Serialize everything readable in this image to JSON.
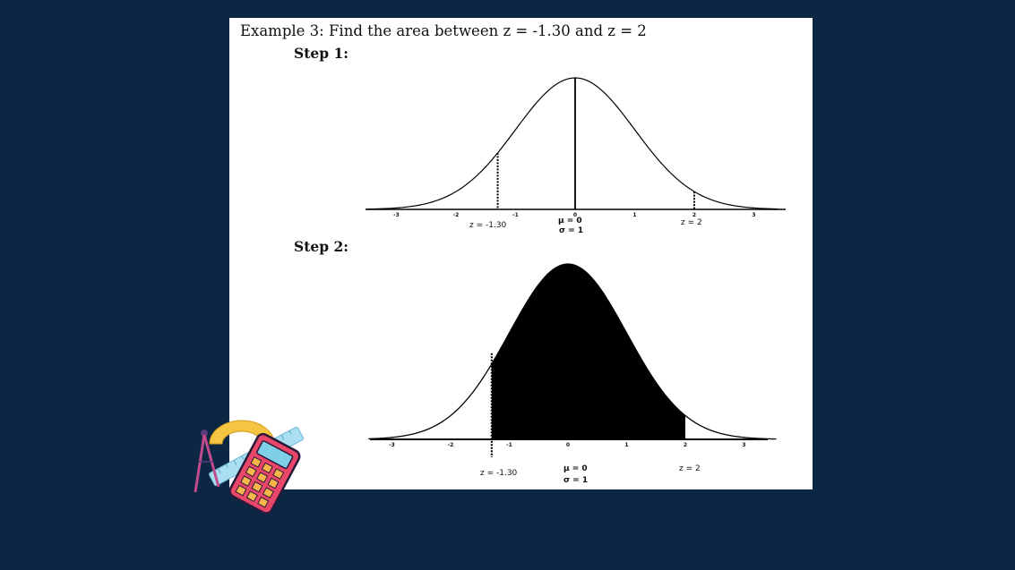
{
  "slide": {
    "title": "Example 3: Find the area between z = -1.30 and z = 2",
    "step1_label": "Step 1:",
    "step2_label": "Step 2:",
    "colors": {
      "background": "#0b2744",
      "card": "#ffffff",
      "ink": "#000000"
    }
  },
  "step1": {
    "ticks": [
      "-3",
      "-2",
      "-1",
      "0",
      "1",
      "2",
      "3"
    ],
    "z_left_label": "z = -1.30",
    "mu_label": "μ = 0",
    "sigma_label": "σ = 1",
    "z_right_label": "z = 2"
  },
  "step2": {
    "ticks": [
      "-3",
      "-2",
      "-1",
      "0",
      "1",
      "2",
      "3"
    ],
    "z_left_label": "z = -1.30",
    "mu_label": "μ = 0",
    "sigma_label": "σ = 1",
    "z_right_label": "z = 2",
    "shaded_from_z": -1.3,
    "shaded_to_z": 2
  },
  "decoration": {
    "icons": [
      "compass-icon",
      "protractor-icon",
      "ruler-icon",
      "calculator-icon"
    ]
  }
}
